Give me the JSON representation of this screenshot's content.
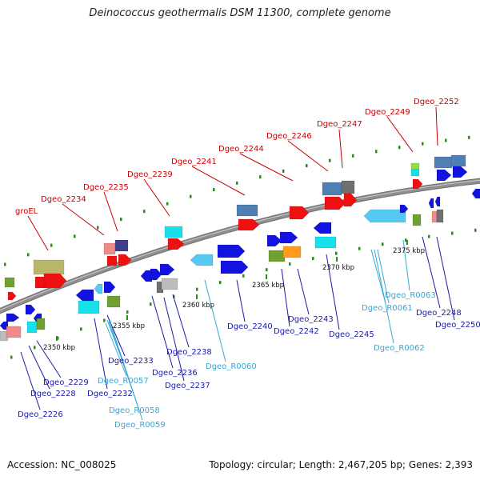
{
  "header": {
    "title": "Deinococcus geothermalis DSM 11300, complete genome"
  },
  "footer": {
    "accession": "Accession: NC_008025",
    "stats": "Topology: circular; Length: 2,467,205 bp; Genes: 2,393"
  },
  "colors": {
    "backbone": "#8f8f8f",
    "label_upper": "#cc0000",
    "label_lower": "#1a1aa8",
    "label_rna": "#36a8d6",
    "dot_track": "#2f8a1a"
  },
  "ticks": [
    "2350 kbp",
    "2355 kbp",
    "2360 kbp",
    "2365 kbp",
    "2370 kbp",
    "2375 kbp"
  ],
  "labels_upper": [
    "groEL",
    "Dgeo_2234",
    "Dgeo_2235",
    "Dgeo_2239",
    "Dgeo_2241",
    "Dgeo_2244",
    "Dgeo_2246",
    "Dgeo_2247",
    "Dgeo_2249",
    "Dgeo_2252"
  ],
  "labels_lower": [
    "Dgeo_2226",
    "Dgeo_2228",
    "Dgeo_2229",
    "Dgeo_2232",
    "Dgeo_2233",
    "Dgeo_R0057",
    "Dgeo_R0058",
    "Dgeo_R0059",
    "Dgeo_2236",
    "Dgeo_2237",
    "Dgeo_2238",
    "Dgeo_R0060",
    "Dgeo_2240",
    "Dgeo_2242",
    "Dgeo_2243",
    "Dgeo_2245",
    "Dgeo_R0061",
    "Dgeo_R0062",
    "Dgeo_R0063",
    "Dgeo_2248",
    "Dgeo_2250"
  ]
}
